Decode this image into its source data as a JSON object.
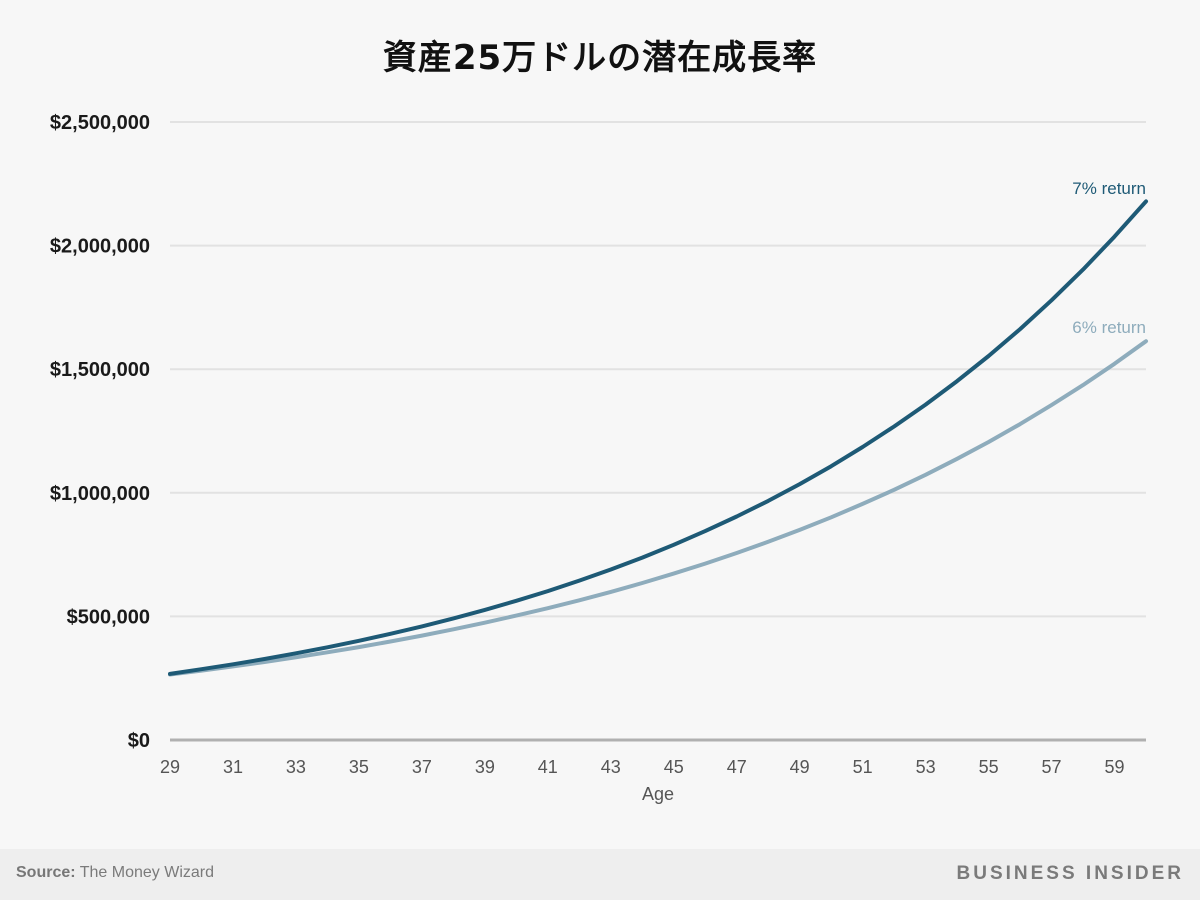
{
  "title": "資産25万ドルの潜在成長率",
  "footer": {
    "source_label": "Source:",
    "source_value": "The Money Wizard",
    "brand": "BUSINESS INSIDER"
  },
  "colors": {
    "background": "#f7f7f7",
    "gridline": "#e2e2e2",
    "axis": "#b0b0b0",
    "series_7": "#1e5a76",
    "series_6": "#8eacbc",
    "footer_bg": "#eeeeee"
  },
  "chart_data": {
    "type": "line",
    "title": "資産25万ドルの潜在成長率",
    "xlabel": "Age",
    "ylabel": "",
    "x": [
      29,
      30,
      31,
      32,
      33,
      34,
      35,
      36,
      37,
      38,
      39,
      40,
      41,
      42,
      43,
      44,
      45,
      46,
      47,
      48,
      49,
      50,
      51,
      52,
      53,
      54,
      55,
      56,
      57,
      58,
      59,
      60
    ],
    "x_ticks": [
      "29",
      "31",
      "33",
      "35",
      "37",
      "39",
      "41",
      "43",
      "45",
      "47",
      "49",
      "51",
      "53",
      "55",
      "57",
      "59"
    ],
    "y_ticks": [
      "$0",
      "$500,000",
      "$1,000,000",
      "$1,500,000",
      "$2,000,000",
      "$2,500,000"
    ],
    "ylim": [
      0,
      2500000
    ],
    "xlim": [
      29,
      60
    ],
    "grid": true,
    "legend_position": "inline-right",
    "series": [
      {
        "name": "7% return",
        "values": [
          267500,
          286225,
          306261,
          327699,
          350638,
          375183,
          401446,
          429547,
          459615,
          491788,
          526213,
          563048,
          602461,
          644633,
          689757,
          738040,
          789703,
          844982,
          904131,
          967420,
          1035139,
          1107599,
          1185131,
          1268090,
          1356857,
          1451837,
          1553466,
          1662208,
          1778563,
          1903062,
          2036276,
          2178816
        ]
      },
      {
        "name": "6% return",
        "values": [
          265000,
          280900,
          297754,
          315619,
          334556,
          354630,
          375907,
          398462,
          422370,
          447712,
          474575,
          503049,
          533232,
          565226,
          599140,
          635088,
          673194,
          713585,
          756400,
          801784,
          849891,
          900884,
          954937,
          1012234,
          1072968,
          1137346,
          1205587,
          1277922,
          1354597,
          1435873,
          1522026,
          1613347
        ]
      }
    ],
    "source": "The Money Wizard"
  }
}
